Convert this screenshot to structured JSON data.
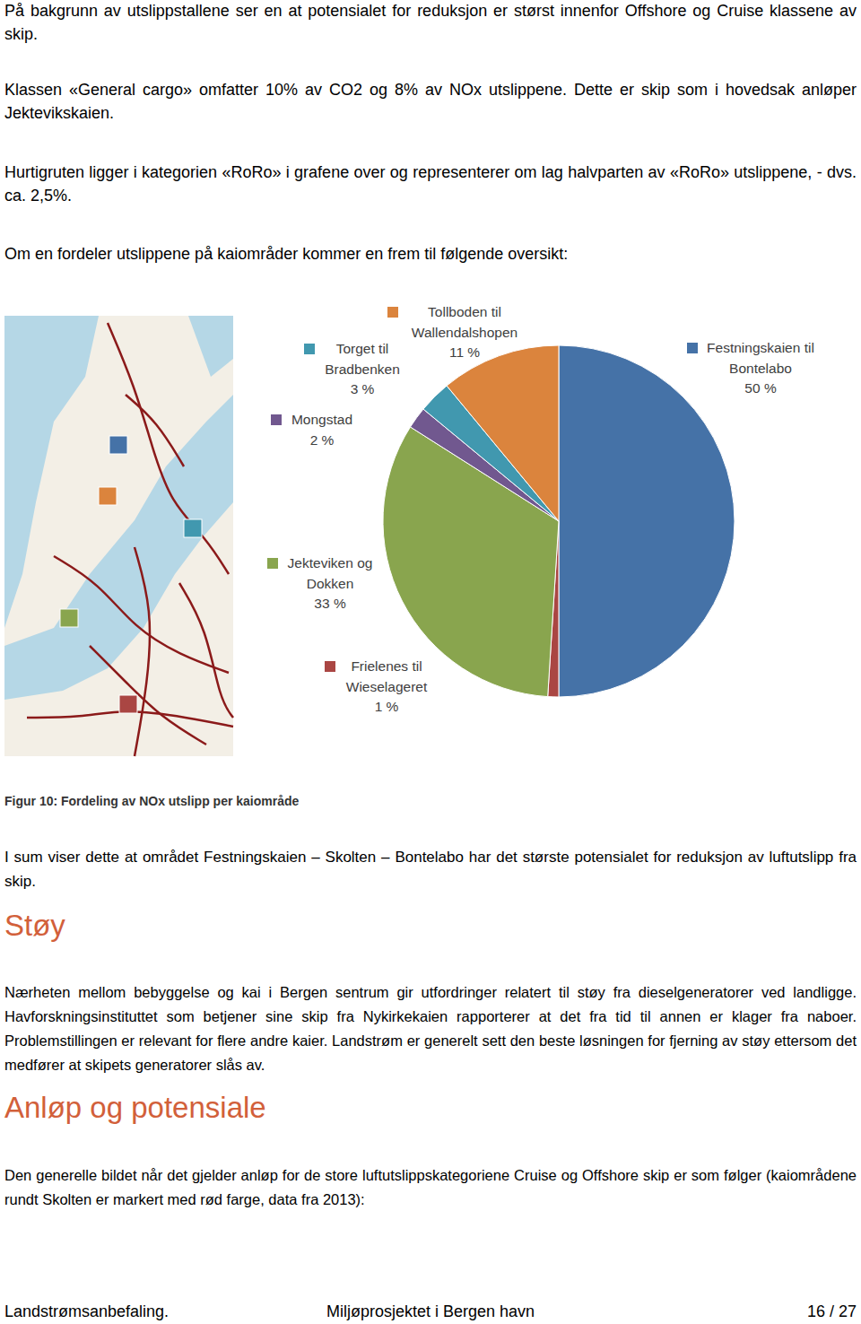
{
  "document": {
    "intro": [
      "På bakgrunn av utslippstallene ser en at potensialet for reduksjon er størst innenfor Offshore og Cruise klassene av skip.",
      "Klassen «General cargo» omfatter 10% av CO2 og 8% av NOx utslippene. Dette er skip som i hovedsak anløper Jektevikskaien.",
      "Hurtigruten ligger i kategorien «RoRo» i grafene over og representerer om lag halvparten av «RoRo» utslippene, - dvs. ca. 2,5%.",
      "Om en fordeler utslippene på kaiområder kommer en frem til følgende oversikt:"
    ],
    "conclusion": "I sum viser dette at området Festningskaien – Skolten – Bontelabo har det største potensialet for reduksjon av luftutslipp fra skip.",
    "sections": [
      {
        "heading": "Støy",
        "text": "Nærheten mellom bebyggelse og kai i Bergen sentrum gir utfordringer relatert til støy fra dieselgeneratorer ved landligge. Havforskningsinstituttet som betjener sine skip fra Nykirkekaien rapporterer at det fra tid til annen er klager fra naboer. Problemstillingen er relevant for flere andre kaier. Landstrøm er generelt sett den beste løsningen for fjerning av støy ettersom det medfører at skipets generatorer slås av."
      },
      {
        "heading": "Anløp og potensiale",
        "text": "Den generelle bildet når det gjelder anløp for de store luftutslippskategoriene Cruise og Offshore skip er som følger (kaiområdene rundt Skolten er markert med rød farge, data fra 2013):"
      }
    ],
    "footer": [
      "Landstrømsanbefaling.",
      "Miljøprosjektet i Bergen havn",
      "16 / 27"
    ]
  },
  "chart_data": {
    "type": "pie",
    "title": "Figur 10: Fordeling av NOx utslipp per kaiområde",
    "categories": [
      "Festningskaien til Bontelabo",
      "Frielenes til Wieselageret",
      "Jekteviken og Dokken",
      "Mongstad",
      "Torget til Bradbenken",
      "Tollboden til Wallendalshopen"
    ],
    "values": [
      50,
      1,
      33,
      2,
      3,
      11
    ],
    "value_labels": [
      "50 %",
      "1 %",
      "33 %",
      "2 %",
      "3 %",
      "11 %"
    ],
    "colors": [
      "#4572a7",
      "#aa4643",
      "#89a54e",
      "#71588f",
      "#4198af",
      "#db843d"
    ],
    "data_labels": true
  }
}
